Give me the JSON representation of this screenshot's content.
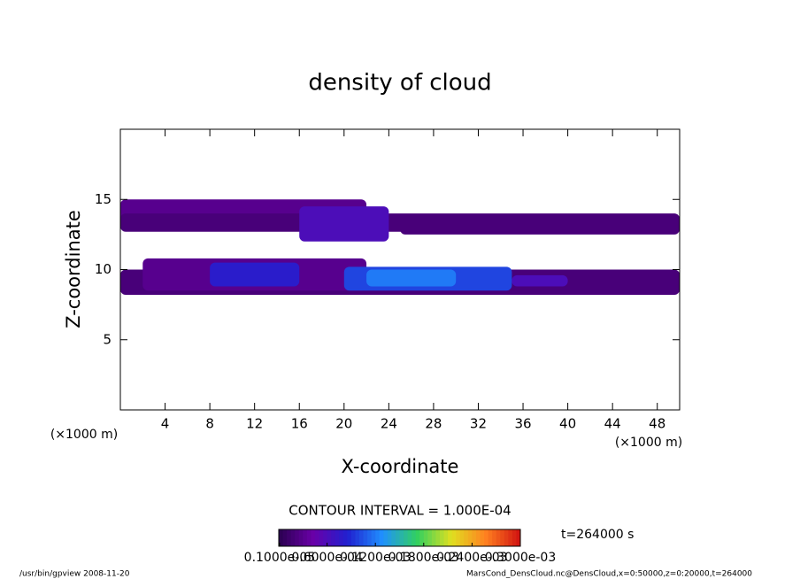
{
  "chart_data": {
    "type": "contour",
    "title": "density of cloud",
    "x_label": "X-coordinate",
    "y_label": "Z-coordinate",
    "x_unit_left": "(×1000 m)",
    "x_unit_right": "(×1000 m)",
    "xlim": [
      0,
      50
    ],
    "xticks": [
      4,
      8,
      12,
      16,
      20,
      24,
      28,
      32,
      36,
      40,
      44,
      48
    ],
    "ylim": [
      0,
      20
    ],
    "yticks": [
      5,
      10,
      15
    ],
    "contour_interval": "CONTOUR INTERVAL = 1.000E-04",
    "time": "t=264000 s",
    "colormap": [
      "#2a0050",
      "#6a00a8",
      "#2020d0",
      "#2090ff",
      "#30d060",
      "#e0e020",
      "#ff8020",
      "#d01010"
    ],
    "clim": [
      0,
      0.0003
    ],
    "cticks": [
      {
        "value": 1e-06,
        "label": "0.1000e-05"
      },
      {
        "value": 6e-05,
        "label": "0.6000e-04"
      },
      {
        "value": 0.00012,
        "label": "0.1200e-03"
      },
      {
        "value": 0.00018,
        "label": "0.1800e-03"
      },
      {
        "value": 0.00024,
        "label": "0.2400e-03"
      },
      {
        "value": 0.0003,
        "label": "0.3000e-03"
      }
    ],
    "regions": [
      {
        "x0": 0,
        "x1": 22,
        "z0": 13.5,
        "z1": 15,
        "value": 3e-05
      },
      {
        "x0": 0,
        "x1": 50,
        "z0": 12.7,
        "z1": 14,
        "value": 2e-05
      },
      {
        "x0": 16,
        "x1": 24,
        "z0": 12,
        "z1": 14.5,
        "value": 6e-05
      },
      {
        "x0": 25,
        "x1": 50,
        "z0": 12.5,
        "z1": 13.8,
        "value": 2e-05
      },
      {
        "x0": 0,
        "x1": 50,
        "z0": 8.2,
        "z1": 10,
        "value": 2e-05
      },
      {
        "x0": 2,
        "x1": 22,
        "z0": 8.5,
        "z1": 10.8,
        "value": 3e-05
      },
      {
        "x0": 8,
        "x1": 16,
        "z0": 8.8,
        "z1": 10.5,
        "value": 8e-05
      },
      {
        "x0": 20,
        "x1": 35,
        "z0": 8.5,
        "z1": 10.2,
        "value": 0.0001
      },
      {
        "x0": 22,
        "x1": 30,
        "z0": 8.8,
        "z1": 10,
        "value": 0.00012
      },
      {
        "x0": 35,
        "x1": 40,
        "z0": 8.8,
        "z1": 9.6,
        "value": 6e-05
      }
    ],
    "footer_left": "/usr/bin/gpview   2008-11-20",
    "footer_right": "MarsCond_DensCloud.nc@DensCloud,x=0:50000,z=0:20000,t=264000"
  }
}
